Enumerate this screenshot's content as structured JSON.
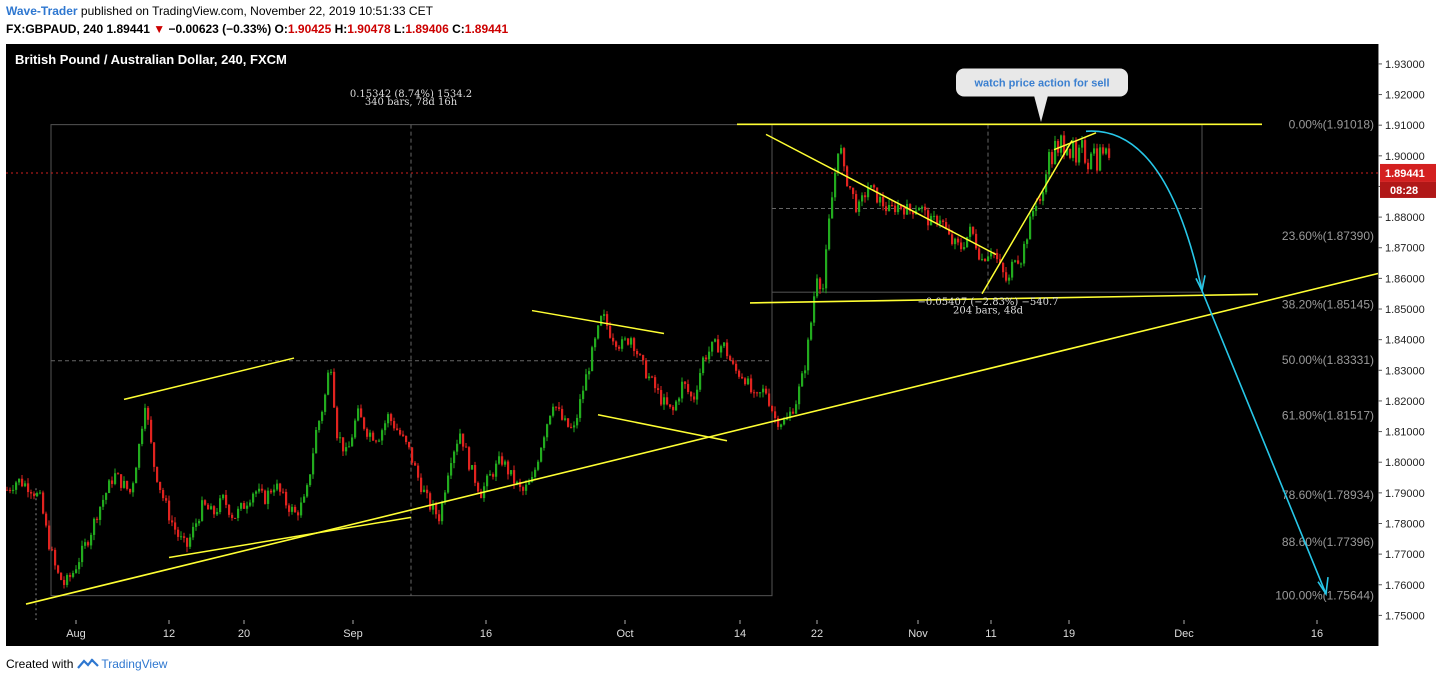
{
  "header": {
    "author": "Wave-Trader",
    "published": " published on TradingView.com, November 22, 2019 10:51:33 CET",
    "symbol": "FX:GBPAUD, 240",
    "price": "1.89441",
    "down_arrow": "▼",
    "change": "−0.00623 (−0.33%)",
    "o_label": "O:",
    "o_value": "1.90425",
    "h_label": "H:",
    "h_value": "1.90478",
    "l_label": "L:",
    "l_value": "1.89406",
    "c_label": "C:",
    "c_value": "1.89441"
  },
  "footer": {
    "created_with": "Created with",
    "brand": "TradingView"
  },
  "colors": {
    "background": "#000000",
    "candle_up": "#22ab1e",
    "candle_down": "#e0231f",
    "trendline": "#ffff33",
    "projection": "#27c7e8",
    "price_line": "#d22020"
  },
  "chart_data": {
    "type": "candlestick",
    "title": "British Pound / Australian Dollar, 240, FXCM",
    "y_axis": {
      "ticks": [
        "1.93000",
        "1.92000",
        "1.91000",
        "1.90000",
        "1.89000",
        "1.88000",
        "1.87000",
        "1.86000",
        "1.85000",
        "1.84000",
        "1.83000",
        "1.82000",
        "1.81000",
        "1.80000",
        "1.79000",
        "1.78000",
        "1.77000",
        "1.76000",
        "1.75000"
      ],
      "range": [
        1.7485,
        1.9365
      ]
    },
    "x_axis": {
      "ticks": [
        "Aug",
        "12",
        "20",
        "Sep",
        "16",
        "Oct",
        "14",
        "22",
        "Nov",
        "11",
        "19",
        "Dec",
        "16"
      ]
    },
    "last_price": "1.89441",
    "countdown": "08:28",
    "price_path": [
      [
        0.0,
        1.791
      ],
      [
        0.01,
        1.7942
      ],
      [
        0.022,
        1.792
      ],
      [
        0.032,
        1.788
      ],
      [
        0.04,
        1.7745
      ],
      [
        0.048,
        1.764
      ],
      [
        0.056,
        1.76
      ],
      [
        0.064,
        1.764
      ],
      [
        0.072,
        1.77
      ],
      [
        0.08,
        1.776
      ],
      [
        0.088,
        1.784
      ],
      [
        0.096,
        1.79
      ],
      [
        0.104,
        1.796
      ],
      [
        0.112,
        1.793
      ],
      [
        0.12,
        1.79
      ],
      [
        0.128,
        1.805
      ],
      [
        0.134,
        1.82
      ],
      [
        0.142,
        1.8
      ],
      [
        0.15,
        1.79
      ],
      [
        0.158,
        1.782
      ],
      [
        0.166,
        1.776
      ],
      [
        0.174,
        1.772
      ],
      [
        0.182,
        1.779
      ],
      [
        0.19,
        1.786
      ],
      [
        0.2,
        1.783
      ],
      [
        0.21,
        1.788
      ],
      [
        0.22,
        1.782
      ],
      [
        0.23,
        1.786
      ],
      [
        0.24,
        1.791
      ],
      [
        0.25,
        1.788
      ],
      [
        0.26,
        1.793
      ],
      [
        0.27,
        1.787
      ],
      [
        0.28,
        1.783
      ],
      [
        0.29,
        1.788
      ],
      [
        0.3,
        1.81
      ],
      [
        0.308,
        1.82
      ],
      [
        0.314,
        1.834
      ],
      [
        0.32,
        1.81
      ],
      [
        0.33,
        1.802
      ],
      [
        0.34,
        1.816
      ],
      [
        0.35,
        1.81
      ],
      [
        0.36,
        1.808
      ],
      [
        0.37,
        1.815
      ],
      [
        0.38,
        1.81
      ],
      [
        0.39,
        1.804
      ],
      [
        0.4,
        1.794
      ],
      [
        0.41,
        1.786
      ],
      [
        0.42,
        1.782
      ],
      [
        0.43,
        1.801
      ],
      [
        0.44,
        1.81
      ],
      [
        0.45,
        1.798
      ],
      [
        0.46,
        1.79
      ],
      [
        0.47,
        1.796
      ],
      [
        0.48,
        1.801
      ],
      [
        0.49,
        1.795
      ],
      [
        0.5,
        1.79
      ],
      [
        0.51,
        1.794
      ],
      [
        0.52,
        1.808
      ],
      [
        0.53,
        1.82
      ],
      [
        0.54,
        1.813
      ],
      [
        0.55,
        1.81
      ],
      [
        0.56,
        1.825
      ],
      [
        0.57,
        1.838
      ],
      [
        0.578,
        1.848
      ],
      [
        0.586,
        1.842
      ],
      [
        0.596,
        1.838
      ],
      [
        0.606,
        1.841
      ],
      [
        0.616,
        1.832
      ],
      [
        0.626,
        1.826
      ],
      [
        0.636,
        1.82
      ],
      [
        0.646,
        1.816
      ],
      [
        0.656,
        1.826
      ],
      [
        0.666,
        1.82
      ],
      [
        0.676,
        1.834
      ],
      [
        0.686,
        1.838
      ],
      [
        0.696,
        1.838
      ],
      [
        0.706,
        1.83
      ],
      [
        0.716,
        1.828
      ],
      [
        0.726,
        1.82
      ],
      [
        0.736,
        1.824
      ],
      [
        0.746,
        1.814
      ],
      [
        0.756,
        1.813
      ],
      [
        0.766,
        1.82
      ],
      [
        0.774,
        1.83
      ],
      [
        0.78,
        1.844
      ],
      [
        0.786,
        1.862
      ],
      [
        0.792,
        1.856
      ],
      [
        0.798,
        1.878
      ],
      [
        0.804,
        1.895
      ],
      [
        0.808,
        1.906
      ],
      [
        0.812,
        1.895
      ],
      [
        0.818,
        1.89
      ],
      [
        0.826,
        1.882
      ],
      [
        0.836,
        1.89
      ],
      [
        0.846,
        1.886
      ],
      [
        0.856,
        1.882
      ],
      [
        0.866,
        1.884
      ],
      [
        0.876,
        1.882
      ],
      [
        0.886,
        1.884
      ],
      [
        0.896,
        1.878
      ],
      [
        0.906,
        1.88
      ],
      [
        0.916,
        1.872
      ],
      [
        0.926,
        1.87
      ],
      [
        0.936,
        1.876
      ],
      [
        0.946,
        1.866
      ],
      [
        0.956,
        1.87
      ],
      [
        0.966,
        1.862
      ],
      [
        0.972,
        1.858
      ],
      [
        0.978,
        1.868
      ],
      [
        0.984,
        1.866
      ],
      [
        0.99,
        1.874
      ],
      [
        0.996,
        1.882
      ],
      [
        1.0,
        1.886
      ]
    ],
    "price_path_2": [
      [
        0.0,
        1.886
      ],
      [
        0.04,
        1.884
      ],
      [
        0.08,
        1.888
      ],
      [
        0.12,
        1.896
      ],
      [
        0.16,
        1.9
      ],
      [
        0.2,
        1.898
      ],
      [
        0.24,
        1.904
      ],
      [
        0.28,
        1.899
      ],
      [
        0.32,
        1.906
      ],
      [
        0.36,
        1.902
      ],
      [
        0.4,
        1.905
      ],
      [
        0.44,
        1.9
      ],
      [
        0.48,
        1.904
      ],
      [
        0.52,
        1.896
      ],
      [
        0.56,
        1.9
      ],
      [
        0.6,
        1.904
      ],
      [
        0.64,
        1.9
      ],
      [
        0.68,
        1.896
      ],
      [
        0.72,
        1.902
      ],
      [
        0.76,
        1.904
      ],
      [
        0.8,
        1.896
      ],
      [
        0.84,
        1.901
      ],
      [
        0.88,
        1.903
      ],
      [
        0.92,
        1.899
      ],
      [
        0.96,
        1.904
      ],
      [
        1.0,
        1.8944
      ]
    ],
    "fibonacci": [
      {
        "label": "0.00%(1.91018)",
        "value": 1.91018
      },
      {
        "label": "23.60%(1.87390)",
        "value": 1.8739
      },
      {
        "label": "38.20%(1.85145)",
        "value": 1.85145
      },
      {
        "label": "50.00%(1.83331)",
        "value": 1.83331
      },
      {
        "label": "61.80%(1.81517)",
        "value": 1.81517
      },
      {
        "label": "78.60%(1.78934)",
        "value": 1.78934
      },
      {
        "label": "88.60%(1.77396)",
        "value": 1.77396
      },
      {
        "label": "100.00%(1.75644)",
        "value": 1.75644
      }
    ],
    "annotations": [
      {
        "text": "0.15342 (8.74%) 1534.2"
      },
      {
        "text": "340 bars, 78d 16h"
      },
      {
        "text": "−0.05407 (−2.83%) −540.7"
      },
      {
        "text": "204 bars, 48d"
      },
      {
        "text": "watch price action for sell"
      }
    ]
  }
}
